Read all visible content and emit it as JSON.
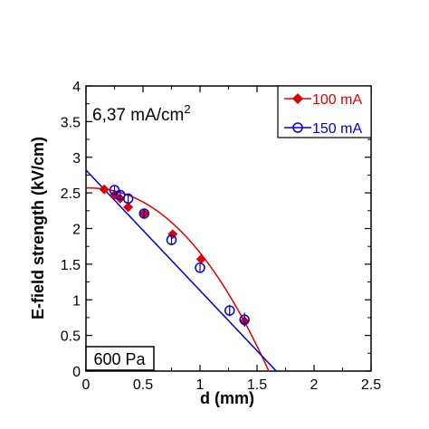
{
  "chart_data": {
    "type": "scatter",
    "xlabel": "d (mm)",
    "ylabel": "E-field strength  (kV/cm)",
    "xlim": [
      0,
      2.5
    ],
    "ylim": [
      0,
      4
    ],
    "xticks": [
      "0",
      "0.5",
      "1",
      "1.5",
      "2",
      "2.5"
    ],
    "yticks": [
      "0",
      "0.5",
      "1",
      "1.5",
      "2",
      "2.5",
      "3",
      "3.5",
      "4"
    ],
    "annotation_main": "6,37 mA/cm",
    "annotation_sup": "2",
    "pressure_label": "600 Pa",
    "legend_position": "top-right",
    "grid": false,
    "series": [
      {
        "name": "100 mA",
        "color": "#e00000",
        "marker": "filled-diamond",
        "points": [
          {
            "x": 0.16,
            "y": 2.55
          },
          {
            "x": 0.25,
            "y": 2.47
          },
          {
            "x": 0.3,
            "y": 2.42
          },
          {
            "x": 0.37,
            "y": 2.3
          },
          {
            "x": 0.51,
            "y": 2.21
          },
          {
            "x": 0.76,
            "y": 1.92
          },
          {
            "x": 1.01,
            "y": 1.57
          },
          {
            "x": 1.39,
            "y": 0.7
          }
        ],
        "fit": {
          "a": 2.57,
          "b": 0.91,
          "c": 2.2
        }
      },
      {
        "name": "150 mA",
        "color": "#0000cc",
        "marker": "open-circle",
        "points": [
          {
            "x": 0.25,
            "y": 2.54,
            "err": 0.05
          },
          {
            "x": 0.3,
            "y": 2.47,
            "err": 0.06
          },
          {
            "x": 0.37,
            "y": 2.42,
            "err": 0.07
          },
          {
            "x": 0.51,
            "y": 2.21,
            "err": 0.05
          },
          {
            "x": 0.75,
            "y": 1.84,
            "err": 0.06
          },
          {
            "x": 1.0,
            "y": 1.45,
            "err": 0.05
          },
          {
            "x": 1.26,
            "y": 0.85,
            "err": 0.08
          },
          {
            "x": 1.39,
            "y": 0.72,
            "err": 0.1
          }
        ],
        "fit": {
          "a": 2.82,
          "b": 1.69,
          "c": 1.0
        }
      }
    ]
  }
}
